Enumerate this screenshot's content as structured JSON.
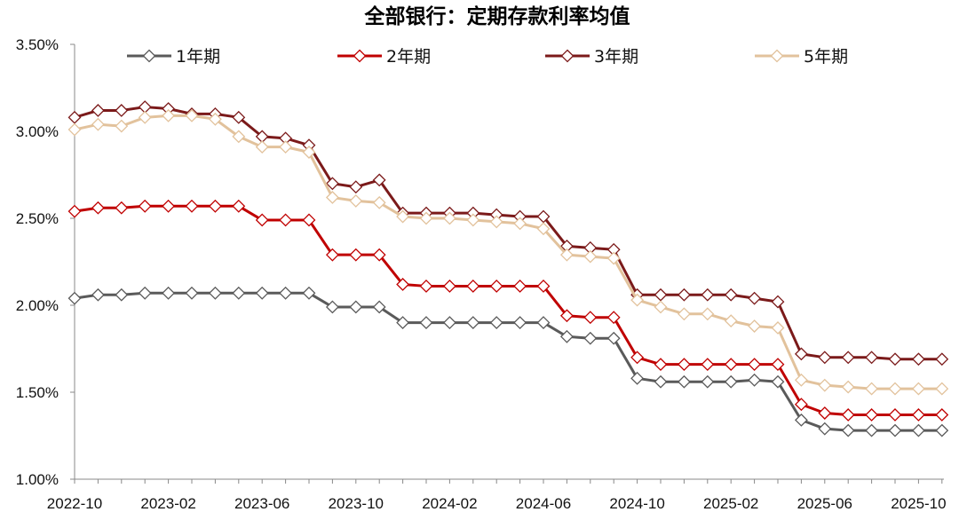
{
  "chart_data": {
    "type": "line",
    "title": "全部银行：定期存款利率均值",
    "xlabel": "",
    "ylabel": "",
    "ylim": [
      1.0,
      3.5
    ],
    "y_ticks": [
      "1.00%",
      "1.50%",
      "2.00%",
      "2.50%",
      "3.00%",
      "3.50%"
    ],
    "x_tick_labels": [
      "2022-10",
      "2023-02",
      "2023-06",
      "2023-10",
      "2024-02",
      "2024-06",
      "2024-10",
      "2025-02",
      "2025-06",
      "2025-10"
    ],
    "x": [
      "2022-10",
      "2022-11",
      "2022-12",
      "2023-01",
      "2023-02",
      "2023-03",
      "2023-04",
      "2023-05",
      "2023-06",
      "2023-07",
      "2023-08",
      "2023-09",
      "2023-10",
      "2023-11",
      "2023-12",
      "2024-01",
      "2024-02",
      "2024-03",
      "2024-04",
      "2024-05",
      "2024-06",
      "2024-07",
      "2024-08",
      "2024-09",
      "2024-10",
      "2024-11",
      "2024-12",
      "2025-01",
      "2025-02",
      "2025-03",
      "2025-04",
      "2025-05",
      "2025-06",
      "2025-07",
      "2025-08",
      "2025-09",
      "2025-10",
      "2025-11"
    ],
    "grid": false,
    "legend_position": "top",
    "series": [
      {
        "name": "1年期",
        "color": "#5a5a5a",
        "values": [
          2.04,
          2.06,
          2.06,
          2.07,
          2.07,
          2.07,
          2.07,
          2.07,
          2.07,
          2.07,
          2.07,
          1.99,
          1.99,
          1.99,
          1.9,
          1.9,
          1.9,
          1.9,
          1.9,
          1.9,
          1.9,
          1.82,
          1.81,
          1.81,
          1.58,
          1.56,
          1.56,
          1.56,
          1.56,
          1.57,
          1.56,
          1.34,
          1.29,
          1.28,
          1.28,
          1.28,
          1.28,
          1.28
        ]
      },
      {
        "name": "2年期",
        "color": "#c00000",
        "values": [
          2.54,
          2.56,
          2.56,
          2.57,
          2.57,
          2.57,
          2.57,
          2.57,
          2.49,
          2.49,
          2.49,
          2.29,
          2.29,
          2.29,
          2.12,
          2.11,
          2.11,
          2.11,
          2.11,
          2.11,
          2.11,
          1.94,
          1.93,
          1.93,
          1.7,
          1.66,
          1.66,
          1.66,
          1.66,
          1.66,
          1.66,
          1.43,
          1.38,
          1.37,
          1.37,
          1.37,
          1.37,
          1.37
        ]
      },
      {
        "name": "3年期",
        "color": "#7b1a1a",
        "values": [
          3.08,
          3.12,
          3.12,
          3.14,
          3.13,
          3.1,
          3.1,
          3.08,
          2.97,
          2.96,
          2.92,
          2.7,
          2.68,
          2.72,
          2.53,
          2.53,
          2.53,
          2.53,
          2.52,
          2.51,
          2.51,
          2.34,
          2.33,
          2.32,
          2.06,
          2.06,
          2.06,
          2.06,
          2.06,
          2.04,
          2.02,
          1.72,
          1.7,
          1.7,
          1.7,
          1.69,
          1.69,
          1.69
        ]
      },
      {
        "name": "5年期",
        "color": "#e2c29c",
        "values": [
          3.01,
          3.04,
          3.03,
          3.08,
          3.09,
          3.09,
          3.07,
          2.97,
          2.91,
          2.91,
          2.88,
          2.62,
          2.6,
          2.59,
          2.51,
          2.5,
          2.5,
          2.49,
          2.48,
          2.47,
          2.44,
          2.29,
          2.28,
          2.27,
          2.03,
          1.99,
          1.95,
          1.95,
          1.91,
          1.88,
          1.87,
          1.57,
          1.54,
          1.53,
          1.52,
          1.52,
          1.52,
          1.52
        ]
      }
    ]
  }
}
